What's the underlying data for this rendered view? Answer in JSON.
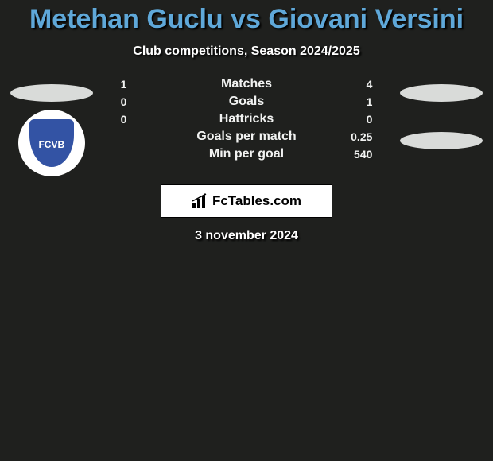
{
  "title": "Metehan Guclu vs Giovani Versini",
  "subtitle": "Club competitions, Season 2024/2025",
  "date": "3 november 2024",
  "branding": "FcTables.com",
  "club_badge_text": "FCVB",
  "colors": {
    "page_bg": "#1f201e",
    "title": "#5fa8d9",
    "text": "#ffffff",
    "bar_olive": "#a4972a",
    "bar_cream": "#ebe3c0",
    "ellipse": "#d9dbd9",
    "shield": "#3353a4"
  },
  "stats": [
    {
      "label": "Matches",
      "left_value": "1",
      "right_value": "4",
      "left_pct": 20,
      "right_pct": 80,
      "left_color": "#a4972a",
      "right_color": "#a4972a",
      "bg_color": "#ebe3c0"
    },
    {
      "label": "Goals",
      "left_value": "0",
      "right_value": "1",
      "left_pct": 0,
      "right_pct": 100,
      "left_color": "#a4972a",
      "right_color": "#a4972a",
      "bg_color": "#ebe3c0"
    },
    {
      "label": "Hattricks",
      "left_value": "0",
      "right_value": "0",
      "left_pct": 100,
      "right_pct": 0,
      "left_color": "#a4972a",
      "right_color": "#a4972a",
      "bg_color": "#a4972a"
    },
    {
      "label": "Goals per match",
      "left_value": "",
      "right_value": "0.25",
      "left_pct": 0,
      "right_pct": 100,
      "left_color": "#a4972a",
      "right_color": "#a4972a",
      "bg_color": "#ebe3c0"
    },
    {
      "label": "Min per goal",
      "left_value": "",
      "right_value": "540",
      "left_pct": 0,
      "right_pct": 100,
      "left_color": "#a4972a",
      "right_color": "#a4972a",
      "bg_color": "#ebe3c0"
    }
  ]
}
